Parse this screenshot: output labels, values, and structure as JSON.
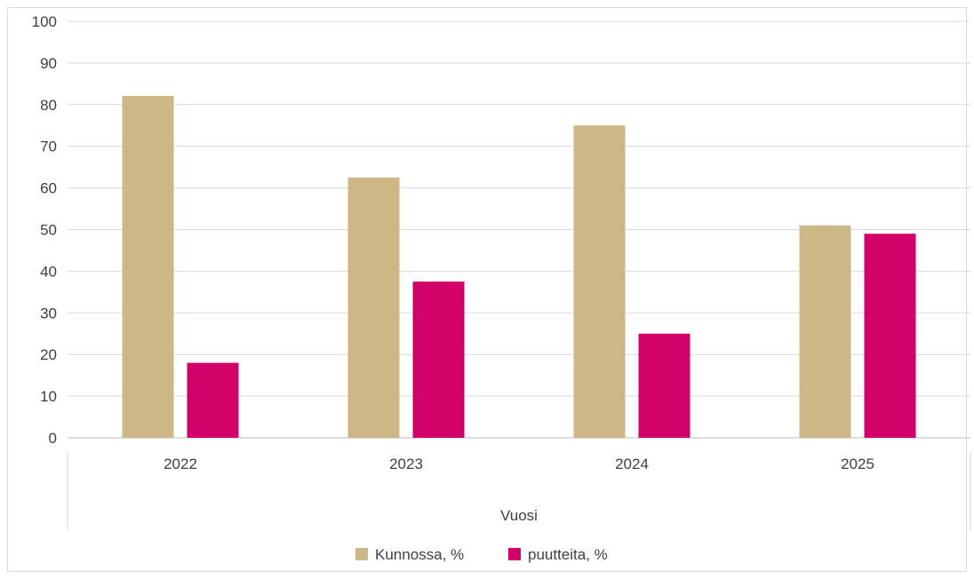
{
  "chart_data": {
    "type": "bar",
    "categories": [
      "2022",
      "2023",
      "2024",
      "2025"
    ],
    "series": [
      {
        "name": "Kunnossa, %",
        "color": "#cdb787",
        "values": [
          82.1,
          62.5,
          75.0,
          51.0
        ]
      },
      {
        "name": "puutteita, %",
        "color": "#d20069",
        "values": [
          18.0,
          37.5,
          25.0,
          49.0
        ]
      }
    ],
    "title": "",
    "xlabel": "Vuosi",
    "ylabel": "",
    "ylim": [
      0,
      100
    ],
    "yticks": [
      "0",
      "10",
      "20",
      "30",
      "40",
      "50",
      "60",
      "70",
      "80",
      "90",
      "100"
    ],
    "grid": true,
    "legend_position": "bottom"
  }
}
